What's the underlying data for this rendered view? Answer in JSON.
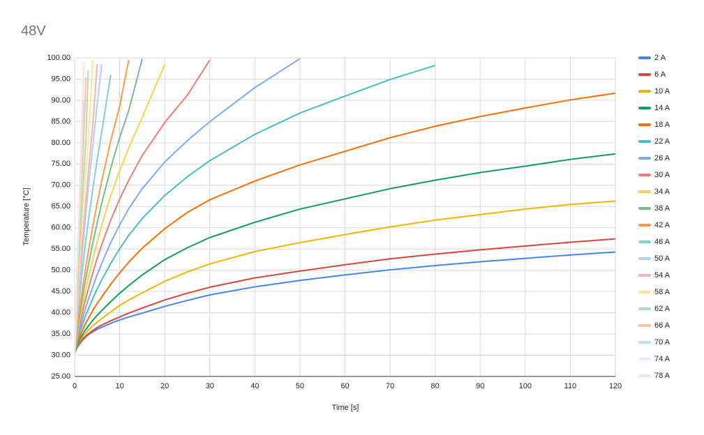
{
  "chart_data": {
    "type": "line",
    "title": "48V",
    "x_label": "Time [s]",
    "y_label": "Temperature [°C]",
    "x": [
      0,
      0.5,
      1,
      1.5,
      2,
      2.5,
      3,
      4,
      5,
      6,
      8,
      10,
      12,
      15,
      20,
      25,
      30,
      40,
      50,
      60,
      70,
      80,
      90,
      100,
      110,
      120
    ],
    "series": [
      {
        "name": "2 A",
        "color": "#4285f4",
        "values": [
          30.5,
          31.7,
          32.5,
          33.2,
          33.8,
          34.3,
          34.8,
          35.5,
          36.1,
          36.6,
          37.5,
          38.3,
          39,
          39.9,
          41.5,
          42.9,
          44.2,
          46.1,
          47.6,
          48.9,
          50.1,
          51.1,
          52,
          52.8,
          53.6,
          54.3
        ]
      },
      {
        "name": "6 A",
        "color": "#db4437",
        "values": [
          30.5,
          31.8,
          32.7,
          33.4,
          34,
          34.5,
          35,
          35.8,
          36.5,
          37.1,
          38.1,
          39,
          39.9,
          41.1,
          43,
          44.6,
          46,
          48.2,
          49.8,
          51.3,
          52.7,
          53.8,
          54.8,
          55.7,
          56.6,
          57.4
        ]
      },
      {
        "name": "10 A",
        "color": "#f4b400",
        "values": [
          30.5,
          31.9,
          33,
          33.8,
          34.6,
          35.2,
          35.8,
          36.9,
          37.8,
          38.6,
          40.2,
          41.7,
          43,
          44.7,
          47.4,
          49.6,
          51.5,
          54.4,
          56.5,
          58.4,
          60.2,
          61.8,
          63.1,
          64.4,
          65.5,
          66.3
        ]
      },
      {
        "name": "14 A",
        "color": "#0f9d58",
        "values": [
          30.5,
          32.1,
          33.4,
          34.4,
          35.3,
          36.1,
          36.8,
          38.2,
          39.4,
          40.5,
          42.6,
          44.6,
          46.4,
          48.9,
          52.5,
          55.3,
          57.7,
          61.3,
          64.4,
          66.8,
          69.2,
          71.2,
          73,
          74.5,
          76.1,
          77.4
        ]
      },
      {
        "name": "18 A",
        "color": "#ff6d01",
        "values": [
          30.5,
          32.4,
          34,
          35.3,
          36.5,
          37.6,
          38.6,
          40.5,
          42.2,
          43.7,
          46.7,
          49.4,
          51.9,
          55.2,
          59.8,
          63.6,
          66.6,
          71,
          74.8,
          78,
          81.2,
          83.9,
          86.2,
          88.2,
          90.1,
          91.7
        ]
      },
      {
        "name": "22 A",
        "color": "#46bdc6",
        "values": [
          30.5,
          32.8,
          34.8,
          36.5,
          38,
          39.5,
          40.8,
          43.3,
          45.6,
          47.7,
          51.6,
          55.1,
          58.2,
          62.2,
          67.6,
          72,
          75.8,
          82,
          87,
          91,
          94.9,
          98.2,
          null,
          null,
          null,
          null
        ]
      },
      {
        "name": "26 A",
        "color": "#7baaf7",
        "values": [
          30.5,
          33.2,
          35.5,
          37.6,
          39.5,
          41.3,
          43,
          46,
          49,
          51.6,
          56.5,
          60.7,
          64.5,
          69.2,
          75.5,
          80.5,
          85,
          93,
          99.8,
          null,
          null,
          null,
          null,
          null,
          null,
          null
        ]
      },
      {
        "name": "30 A",
        "color": "#f07b72",
        "values": [
          30.5,
          33.8,
          36.5,
          39,
          41.3,
          43.5,
          45.5,
          49.3,
          52.8,
          56,
          61.8,
          66.8,
          71.2,
          77,
          84.8,
          91.2,
          99.5,
          null,
          null,
          null,
          null,
          null,
          null,
          null,
          null,
          null
        ]
      },
      {
        "name": "34 A",
        "color": "#fcd04f",
        "values": [
          30.5,
          34.3,
          37.5,
          40.4,
          43,
          45.6,
          48,
          52.5,
          56.7,
          60.6,
          67.5,
          73.5,
          78.8,
          86,
          98.5,
          null,
          null,
          null,
          null,
          null,
          null,
          null,
          null,
          null,
          null,
          null
        ]
      },
      {
        "name": "38 A",
        "color": "#71c287",
        "values": [
          30.5,
          35,
          38.7,
          42,
          45.2,
          48.2,
          51,
          56.3,
          61.2,
          65.8,
          74,
          81.3,
          87.6,
          99.8,
          null,
          null,
          null,
          null,
          null,
          null,
          null,
          null,
          null,
          null,
          null,
          null
        ]
      },
      {
        "name": "42 A",
        "color": "#ff994d",
        "values": [
          30.5,
          35.6,
          40,
          44,
          47.5,
          51,
          54.2,
          60.2,
          65.8,
          71,
          80.5,
          88.7,
          99.5,
          null,
          null,
          null,
          null,
          null,
          null,
          null,
          null,
          null,
          null,
          null,
          null,
          null
        ]
      },
      {
        "name": "46 A",
        "color": "#7ed1d7",
        "values": [
          30.5,
          37,
          42.8,
          48,
          52.8,
          57.2,
          61.4,
          69,
          76,
          82.5,
          96,
          null,
          null,
          null,
          null,
          null,
          null,
          null,
          null,
          null,
          null,
          null,
          null,
          null,
          null,
          null
        ]
      },
      {
        "name": "50 A",
        "color": "#b3cefb",
        "values": [
          30.5,
          38,
          44.5,
          51,
          57.5,
          63.5,
          69,
          79,
          89,
          98.5,
          null,
          null,
          null,
          null,
          null,
          null,
          null,
          null,
          null,
          null,
          null,
          null,
          null,
          null,
          null,
          null
        ]
      },
      {
        "name": "54 A",
        "color": "#f7b4ae",
        "values": [
          30.5,
          39.5,
          47,
          54,
          60.5,
          66.5,
          72.5,
          84,
          98.5,
          null,
          null,
          null,
          null,
          null,
          null,
          null,
          null,
          null,
          null,
          null,
          null,
          null,
          null,
          null,
          null,
          null
        ]
      },
      {
        "name": "58 A",
        "color": "#fde49b",
        "values": [
          30.5,
          41,
          50,
          58.5,
          66,
          73,
          80,
          99.5,
          null,
          null,
          null,
          null,
          null,
          null,
          null,
          null,
          null,
          null,
          null,
          null,
          null,
          null,
          null,
          null,
          null,
          null
        ]
      },
      {
        "name": "62 A",
        "color": "#aedcba",
        "values": [
          30.5,
          43,
          53.5,
          63,
          72,
          80.5,
          97,
          null,
          null,
          null,
          null,
          null,
          null,
          null,
          null,
          null,
          null,
          null,
          null,
          null,
          null,
          null,
          null,
          null,
          null,
          null
        ]
      },
      {
        "name": "66 A",
        "color": "#ffc599",
        "values": [
          30.5,
          45,
          57.5,
          69,
          80,
          95.5,
          null,
          null,
          null,
          null,
          null,
          null,
          null,
          null,
          null,
          null,
          null,
          null,
          null,
          null,
          null,
          null,
          null,
          null,
          null,
          null
        ]
      },
      {
        "name": "70 A",
        "color": "#b5e5e8",
        "values": [
          30.5,
          47,
          61,
          74,
          90,
          null,
          null,
          null,
          null,
          null,
          null,
          null,
          null,
          null,
          null,
          null,
          null,
          null,
          null,
          null,
          null,
          null,
          null,
          null,
          null,
          null
        ]
      },
      {
        "name": "74 A",
        "color": "#e1ecfd",
        "values": [
          30.5,
          49,
          64,
          78,
          97,
          null,
          null,
          null,
          null,
          null,
          null,
          null,
          null,
          null,
          null,
          null,
          null,
          null,
          null,
          null,
          null,
          null,
          null,
          null,
          null,
          null
        ]
      },
      {
        "name": "78 A",
        "color": "#fbe1df",
        "values": [
          30.5,
          51,
          67,
          82,
          99,
          null,
          null,
          null,
          null,
          null,
          null,
          null,
          null,
          null,
          null,
          null,
          null,
          null,
          null,
          null,
          null,
          null,
          null,
          null,
          null,
          null
        ]
      }
    ],
    "xlim": [
      0,
      120
    ],
    "xticks": [
      0,
      10,
      20,
      30,
      40,
      50,
      60,
      70,
      80,
      90,
      100,
      110,
      120
    ],
    "ylim": [
      25,
      100
    ],
    "yticks": [
      {
        "value": 25,
        "label": "25.00"
      },
      {
        "value": 30,
        "label": "30.00"
      },
      {
        "value": 35,
        "label": "35.00"
      },
      {
        "value": 40,
        "label": "40.00"
      },
      {
        "value": 45,
        "label": "45.00"
      },
      {
        "value": 50,
        "label": "50.00"
      },
      {
        "value": 55,
        "label": "55.00"
      },
      {
        "value": 60,
        "label": "60.00"
      },
      {
        "value": 65,
        "label": "65.00"
      },
      {
        "value": 70,
        "label": "70.00"
      },
      {
        "value": 75,
        "label": "75.00"
      },
      {
        "value": 80,
        "label": "80.00"
      },
      {
        "value": 85,
        "label": "85.00"
      },
      {
        "value": 90,
        "label": "90.00"
      },
      {
        "value": 95,
        "label": "95.00"
      },
      {
        "value": 100,
        "label": "100.00"
      }
    ],
    "grid": true,
    "legend": "right"
  }
}
